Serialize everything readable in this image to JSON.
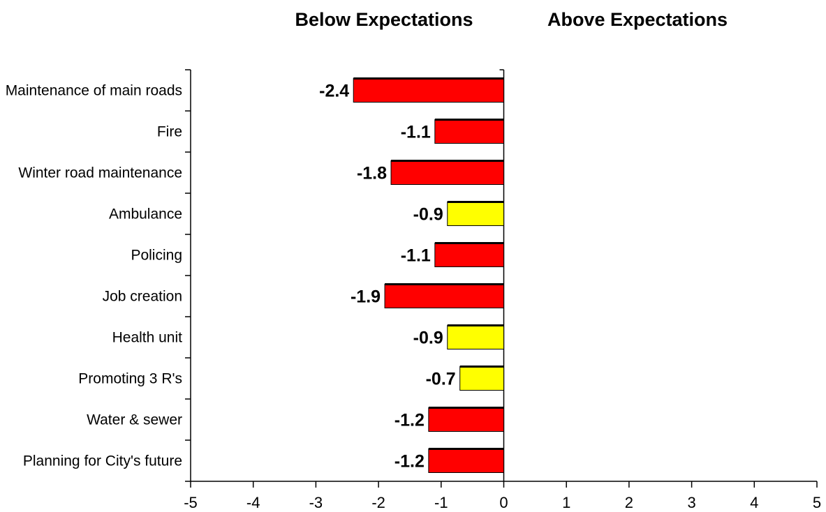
{
  "chart_data": {
    "type": "bar",
    "orientation": "horizontal",
    "headers": {
      "left": "Below Expectations",
      "right": "Above Expectations"
    },
    "categories": [
      "Maintenance of main roads",
      "Fire",
      "Winter road maintenance",
      "Ambulance",
      "Policing",
      "Job creation",
      "Health unit",
      "Promoting 3 R's",
      "Water & sewer",
      "Planning for City's future"
    ],
    "values": [
      -2.4,
      -1.1,
      -1.8,
      -0.9,
      -1.1,
      -1.9,
      -0.9,
      -0.7,
      -1.2,
      -1.2
    ],
    "value_labels": [
      "-2.4",
      "-1.1",
      "-1.8",
      "-0.9",
      "-1.1",
      "-1.9",
      "-0.9",
      "-0.7",
      "-1.2",
      "-1.2"
    ],
    "bar_colors": [
      "#ff0000",
      "#ff0000",
      "#ff0000",
      "#ffff00",
      "#ff0000",
      "#ff0000",
      "#ffff00",
      "#ffff00",
      "#ff0000",
      "#ff0000"
    ],
    "xlim": [
      -5,
      5
    ],
    "xticks": [
      -5,
      -4,
      -3,
      -2,
      -1,
      0,
      1,
      2,
      3,
      4,
      5
    ],
    "xtick_labels": [
      "-5",
      "-4",
      "-3",
      "-2",
      "-1",
      "0",
      "1",
      "2",
      "3",
      "4",
      "5"
    ],
    "title": "",
    "xlabel": "",
    "ylabel": "",
    "grid": false,
    "legend": "none"
  }
}
